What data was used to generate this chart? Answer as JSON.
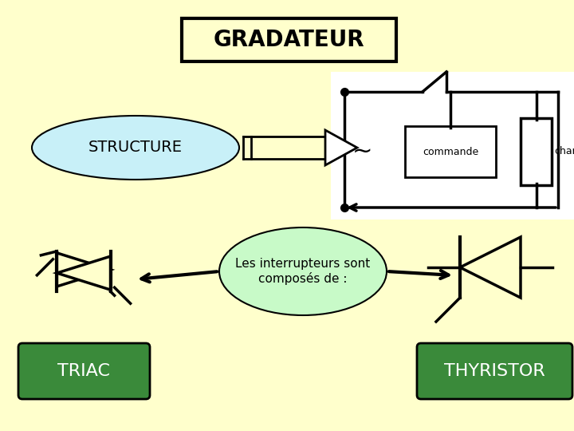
{
  "background_color": "#FFFFCC",
  "title": "GRADATEUR",
  "title_fontsize": 20,
  "structure_label": "STRUCTURE",
  "structure_ellipse_color": "#C8F0F8",
  "center_ellipse_label": "Les interrupteurs sont\ncomposés de :",
  "center_ellipse_color": "#C8FAC8",
  "triac_label": "TRIAC",
  "triac_box_color": "#3A8A3A",
  "triac_text_color": "#FFFFFF",
  "thyristor_label": "THYRISTOR",
  "thyristor_box_color": "#3A8A3A",
  "thyristor_text_color": "#FFFFFF"
}
